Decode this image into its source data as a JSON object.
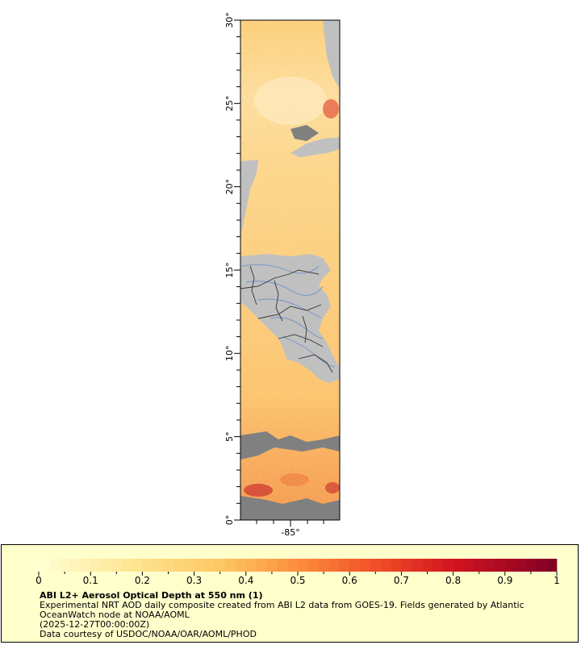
{
  "map": {
    "lat_ticks": [
      "0°",
      "5°",
      "10°",
      "15°",
      "20°",
      "25°",
      "30°"
    ],
    "lon_ticks": [
      "-85°"
    ],
    "lat_range": [
      0,
      30
    ],
    "lon_center_label": "-85°"
  },
  "legend": {
    "title": "ABI L2+ Aerosol Optical Depth at 550 nm (1)",
    "description_line1": "Experimental NRT AOD daily composite created from ABI L2 data from GOES-19. Fields generated by Atlantic",
    "description_line2": "OceanWatch node at NOAA/AOML",
    "timestamp": "(2025-12-27T00:00:00Z)",
    "credits": "Data courtesy of USDOC/NOAA/OAR/AOML/PHOD",
    "colorbar_ticks": [
      "0",
      "0.1",
      "0.2",
      "0.3",
      "0.4",
      "0.5",
      "0.6",
      "0.7",
      "0.8",
      "0.9",
      "1"
    ],
    "colorbar_range": [
      0,
      1
    ]
  },
  "colors": {
    "land": "#c0c0c0",
    "no_data": "#808080",
    "ocean_low": "#fde8b0",
    "ocean_mid": "#fbc668",
    "ocean_high": "#f08a3c",
    "aod_max": "#800026",
    "legend_bg": "#ffffcc",
    "rivers": "#6f93c8",
    "borders": "#333333"
  }
}
